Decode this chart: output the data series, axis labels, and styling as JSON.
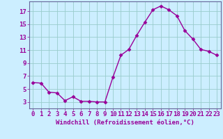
{
  "x": [
    0,
    1,
    2,
    3,
    4,
    5,
    6,
    7,
    8,
    9,
    10,
    11,
    12,
    13,
    14,
    15,
    16,
    17,
    18,
    19,
    20,
    21,
    22,
    23
  ],
  "y": [
    6.0,
    5.9,
    4.5,
    4.4,
    3.2,
    3.8,
    3.1,
    3.1,
    3.0,
    3.0,
    6.8,
    10.2,
    11.1,
    13.3,
    15.3,
    17.2,
    17.8,
    17.2,
    16.3,
    14.0,
    12.7,
    11.1,
    10.8,
    10.2
  ],
  "line_color": "#990099",
  "marker": "D",
  "markersize": 2.5,
  "linewidth": 1.0,
  "xlabel": "Windchill (Refroidissement éolien,°C)",
  "xlim": [
    -0.5,
    23.5
  ],
  "ylim": [
    2.0,
    18.5
  ],
  "yticks": [
    3,
    5,
    7,
    9,
    11,
    13,
    15,
    17
  ],
  "ytick_labels": [
    "3",
    "5",
    "7",
    "9",
    "11",
    "13",
    "15",
    "17"
  ],
  "xticks": [
    0,
    1,
    2,
    3,
    4,
    5,
    6,
    7,
    8,
    9,
    10,
    11,
    12,
    13,
    14,
    15,
    16,
    17,
    18,
    19,
    20,
    21,
    22,
    23
  ],
  "xtick_labels": [
    "0",
    "1",
    "2",
    "3",
    "4",
    "5",
    "6",
    "7",
    "8",
    "9",
    "10",
    "11",
    "12",
    "13",
    "14",
    "15",
    "16",
    "17",
    "18",
    "19",
    "20",
    "21",
    "22",
    "23"
  ],
  "bg_color": "#cceeff",
  "grid_color": "#99cccc",
  "line_border_color": "#666699",
  "tick_color": "#990099",
  "label_color": "#990099",
  "xlabel_fontsize": 6.5,
  "tick_fontsize": 6.5
}
